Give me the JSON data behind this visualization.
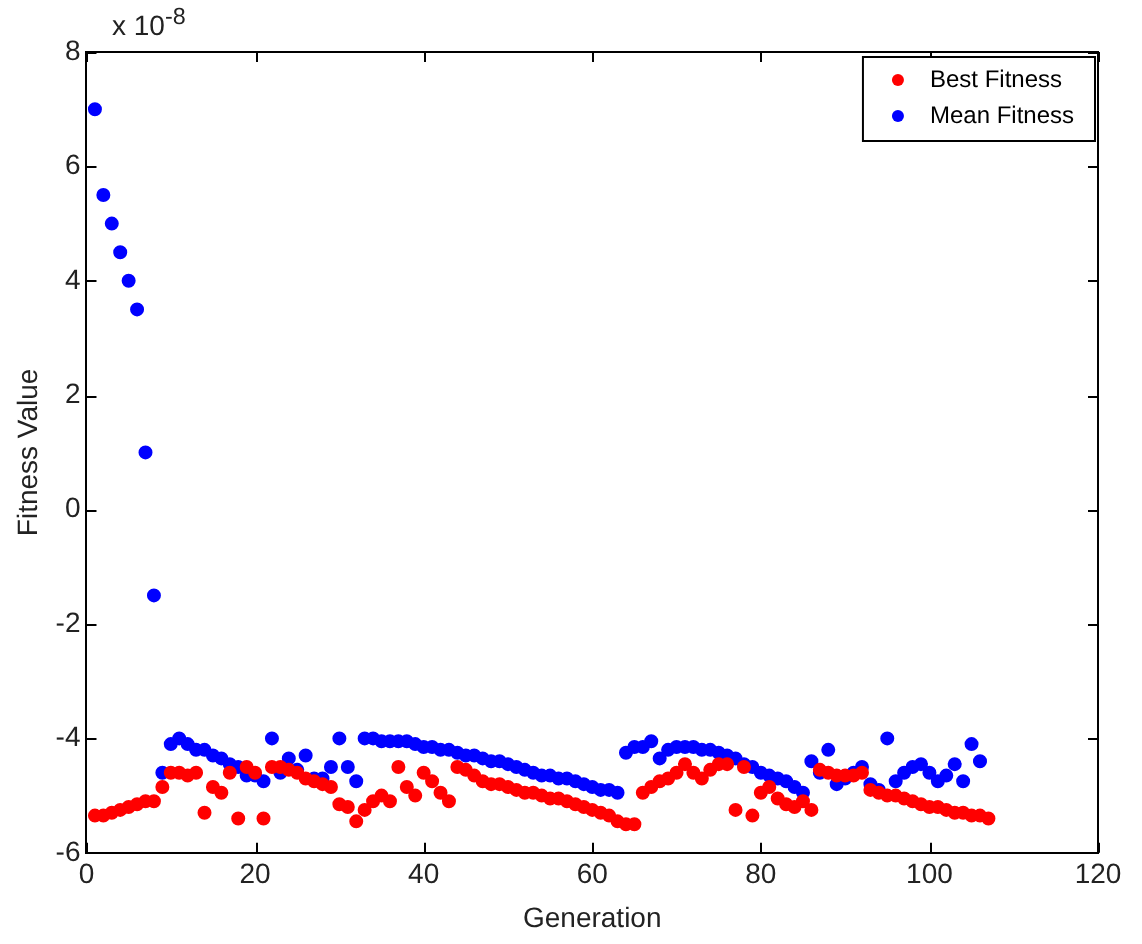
{
  "chart_data": {
    "type": "scatter",
    "xlabel": "Generation",
    "ylabel": "Fitness Value",
    "annotations": [
      "x 10$^{-8}$"
    ],
    "xlim": [
      0,
      120
    ],
    "xticks": [
      0,
      20,
      40,
      60,
      80,
      100,
      120
    ],
    "ylim": [
      -6,
      8
    ],
    "yticks": [
      -6,
      -4,
      -2,
      0,
      2,
      4,
      6,
      8
    ],
    "grid": false,
    "legend": "top right",
    "marker": "circle",
    "x": [
      1,
      2,
      3,
      4,
      5,
      6,
      7,
      8,
      9,
      10,
      11,
      12,
      13,
      14,
      15,
      16,
      17,
      18,
      19,
      20,
      21,
      22,
      23,
      24,
      25,
      26,
      27,
      28,
      29,
      30,
      31,
      32,
      33,
      34,
      35,
      36,
      37,
      38,
      39,
      40,
      41,
      42,
      43,
      44,
      45,
      46,
      47,
      48,
      49,
      50,
      51,
      52,
      53,
      54,
      55,
      56,
      57,
      58,
      59,
      60,
      61,
      62,
      63,
      64,
      65,
      66,
      67,
      68,
      69,
      70,
      71,
      72,
      73,
      74,
      75,
      76,
      77,
      78,
      79,
      80,
      81,
      82,
      83,
      84,
      85,
      86,
      87,
      88,
      89,
      90,
      91,
      92,
      93,
      94,
      95,
      96,
      97,
      98,
      99,
      100,
      101,
      102,
      103,
      104,
      105,
      106,
      107
    ],
    "series": [
      {
        "name": "Best Fitness",
        "color": "#ff0000",
        "values": [
          -5.35,
          -5.35,
          -5.3,
          -5.25,
          -5.2,
          -5.15,
          -5.1,
          -5.1,
          -4.85,
          -4.6,
          -4.6,
          -4.65,
          -4.6,
          -5.3,
          -4.85,
          -4.95,
          -4.6,
          -5.4,
          -4.5,
          -4.6,
          -5.4,
          -4.5,
          -4.5,
          -4.55,
          -4.6,
          -4.7,
          -4.75,
          -4.8,
          -4.85,
          -5.15,
          -5.2,
          -5.45,
          -5.25,
          -5.1,
          -5.0,
          -5.1,
          -4.5,
          -4.85,
          -5.0,
          -4.6,
          -4.75,
          -4.95,
          -5.1,
          -4.5,
          -4.55,
          -4.65,
          -4.75,
          -4.8,
          -4.8,
          -4.85,
          -4.9,
          -4.95,
          -4.95,
          -5.0,
          -5.05,
          -5.05,
          -5.1,
          -5.15,
          -5.2,
          -5.25,
          -5.3,
          -5.35,
          -5.45,
          -5.5,
          -5.5,
          -4.95,
          -4.85,
          -4.75,
          -4.7,
          -4.6,
          -4.45,
          -4.6,
          -4.7,
          -4.55,
          -4.45,
          -4.45,
          -5.25,
          -4.5,
          -5.35,
          -4.95,
          -4.85,
          -5.05,
          -5.15,
          -5.2,
          -5.1,
          -5.25,
          -4.55,
          -4.6,
          -4.65,
          -4.65,
          -4.65,
          -4.6,
          -4.9,
          -4.95,
          -5.0,
          -5.0,
          -5.05,
          -5.1,
          -5.15,
          -5.2,
          -5.2,
          -5.25,
          -5.3,
          -5.3,
          -5.35,
          -5.35,
          -5.4
        ]
      },
      {
        "name": "Mean Fitness",
        "color": "#0000ff",
        "values": [
          7.0,
          5.5,
          5.0,
          4.5,
          4.0,
          3.5,
          1.0,
          -1.5,
          -4.6,
          -4.1,
          -4.0,
          -4.1,
          -4.2,
          -4.2,
          -4.3,
          -4.35,
          -4.45,
          -4.5,
          -4.65,
          -4.65,
          -4.75,
          -4.0,
          -4.6,
          -4.35,
          -4.55,
          -4.3,
          -4.7,
          -4.7,
          -4.5,
          -4.0,
          -4.5,
          -4.75,
          -4.0,
          -4.0,
          -4.05,
          -4.05,
          -4.05,
          -4.05,
          -4.1,
          -4.15,
          -4.15,
          -4.2,
          -4.2,
          -4.25,
          -4.3,
          -4.3,
          -4.35,
          -4.4,
          -4.4,
          -4.45,
          -4.5,
          -4.55,
          -4.6,
          -4.65,
          -4.65,
          -4.7,
          -4.7,
          -4.75,
          -4.8,
          -4.85,
          -4.9,
          -4.9,
          -4.95,
          -4.25,
          -4.15,
          -4.15,
          -4.05,
          -4.35,
          -4.2,
          -4.15,
          -4.15,
          -4.15,
          -4.2,
          -4.2,
          -4.25,
          -4.3,
          -4.35,
          -4.45,
          -4.5,
          -4.6,
          -4.65,
          -4.7,
          -4.75,
          -4.85,
          -4.95,
          -4.4,
          -4.6,
          -4.2,
          -4.8,
          -4.7,
          -4.6,
          -4.5,
          -4.8,
          -4.9,
          -4.0,
          -4.75,
          -4.6,
          -4.5,
          -4.45,
          -4.6,
          -4.75,
          -4.65,
          -4.45,
          -4.75,
          -4.1,
          -4.4,
          null
        ]
      }
    ]
  }
}
